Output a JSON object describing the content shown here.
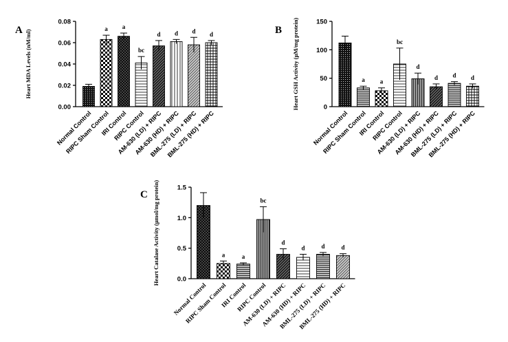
{
  "chart_data": [
    {
      "panel": "A",
      "type": "bar",
      "ylabel": "Heart MDA Levels (nM/ml)",
      "ylim": [
        0,
        0.08
      ],
      "yticks": [
        "0.00",
        "0.02",
        "0.04",
        "0.06",
        "0.08"
      ],
      "categories": [
        "Normal Control",
        "RIPC Sham Control",
        "IRI Control",
        "RIPC Control",
        "AM-630 (LD) + RIPC",
        "AM-630 (HD) + RIPC",
        "BML-275 (LD) + RIPC",
        "BML-275 (HD) + RIPC"
      ],
      "values": [
        0.019,
        0.063,
        0.066,
        0.041,
        0.057,
        0.061,
        0.058,
        0.06
      ],
      "errors": [
        0.002,
        0.004,
        0.003,
        0.006,
        0.005,
        0.002,
        0.007,
        0.002
      ],
      "annotations": [
        "",
        "a",
        "a",
        "bc",
        "d",
        "d",
        "d",
        "d"
      ],
      "patterns": [
        "dots",
        "checker",
        "crosshatch",
        "horizontal",
        "diagonal",
        "vertical",
        "diag-light",
        "grid"
      ]
    },
    {
      "panel": "B",
      "type": "bar",
      "ylabel": "Heart GSH Activity (μM/mg protein)",
      "ylim": [
        0,
        150
      ],
      "yticks": [
        "0",
        "50",
        "100",
        "150"
      ],
      "categories": [
        "Normal Control",
        "RIPC Sham Control",
        "IRI Control",
        "RIPC Control",
        "AM-630 (LD) + RIPC",
        "AM-630 (HD) + RIPC",
        "BML-275 (LD) + RIPC",
        "BML-275 (HD) + RIPC"
      ],
      "values": [
        112,
        33,
        28,
        75,
        49,
        35,
        41,
        36
      ],
      "errors": [
        12,
        3,
        5,
        28,
        10,
        5,
        3,
        4
      ],
      "annotations": [
        "",
        "a",
        "a",
        "bc",
        "d",
        "d",
        "d",
        "d"
      ],
      "patterns": [
        "dots",
        "hstripe-dense",
        "checker",
        "horizontal",
        "vertical-gray",
        "diagonal",
        "hstripe-dense",
        "grid"
      ]
    },
    {
      "panel": "C",
      "type": "bar",
      "ylabel": "Heart Catalase Activity (μmol/mg protein)",
      "ylim": [
        0,
        1.5
      ],
      "yticks": [
        "0.0",
        "0.5",
        "1.0",
        "1.5"
      ],
      "categories": [
        "Normal Control",
        "RIPC Sham Control",
        "IRI Control",
        "RIPC Control",
        "AM-630 (LD) + RIPC",
        "AM-630 (HD) + RIPC",
        "BML-275 (LD) + RIPC",
        "BML-275 (HD) + RIPC"
      ],
      "values": [
        1.2,
        0.25,
        0.24,
        0.97,
        0.4,
        0.35,
        0.4,
        0.38
      ],
      "errors": [
        0.21,
        0.04,
        0.02,
        0.21,
        0.09,
        0.05,
        0.03,
        0.03
      ],
      "annotations": [
        "",
        "a",
        "a",
        "bc",
        "d",
        "d",
        "d",
        "d"
      ],
      "patterns": [
        "crosshatch",
        "checker",
        "hstripe-dense",
        "vertical-gray",
        "diagonal",
        "horizontal",
        "hstripe-dense",
        "diag-light"
      ]
    }
  ]
}
